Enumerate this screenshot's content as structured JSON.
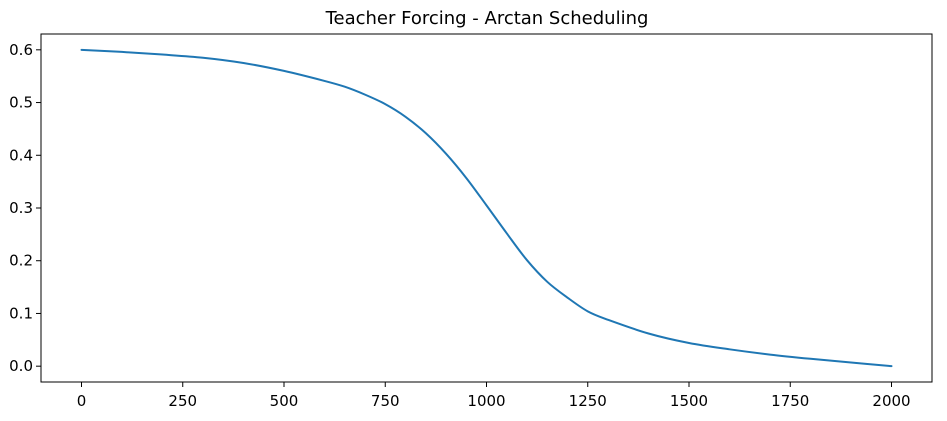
{
  "chart_data": {
    "type": "line",
    "title": "Teacher Forcing - Arctan Scheduling",
    "xlabel": "",
    "ylabel": "",
    "xlim": [
      -100,
      2100
    ],
    "ylim": [
      -0.03,
      0.63
    ],
    "grid": false,
    "legend": "none",
    "x_ticks": [
      0,
      250,
      500,
      750,
      1000,
      1250,
      1500,
      1750,
      2000
    ],
    "y_ticks": [
      0.0,
      0.1,
      0.2,
      0.3,
      0.4,
      0.5,
      0.6
    ],
    "x_tick_labels": [
      "0",
      "250",
      "500",
      "750",
      "1000",
      "1250",
      "1500",
      "1750",
      "2000"
    ],
    "y_tick_labels": [
      "0.0",
      "0.1",
      "0.2",
      "0.3",
      "0.4",
      "0.5",
      "0.6"
    ],
    "series": [
      {
        "color": "#1f77b4",
        "x": [
          0,
          100,
          200,
          300,
          400,
          500,
          600,
          650,
          700,
          750,
          800,
          850,
          900,
          950,
          1000,
          1050,
          1100,
          1150,
          1200,
          1250,
          1300,
          1400,
          1500,
          1600,
          1700,
          1800,
          1900,
          2000
        ],
        "y": [
          0.6,
          0.596,
          0.591,
          0.585,
          0.575,
          0.56,
          0.541,
          0.53,
          0.515,
          0.497,
          0.473,
          0.442,
          0.403,
          0.357,
          0.305,
          0.252,
          0.201,
          0.16,
          0.13,
          0.104,
          0.088,
          0.062,
          0.044,
          0.032,
          0.022,
          0.014,
          0.007,
          0.0
        ]
      }
    ]
  }
}
